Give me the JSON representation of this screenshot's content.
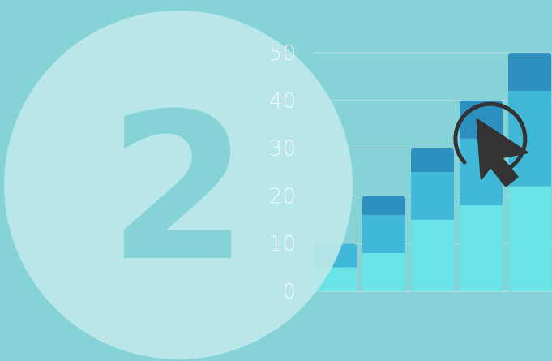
{
  "badge": {
    "number": "2"
  },
  "chart_data": {
    "type": "bar",
    "stacked": true,
    "categories": [
      "",
      "",
      "",
      "",
      ""
    ],
    "series": [
      {
        "values": [
          5,
          8,
          15,
          18,
          22
        ]
      },
      {
        "values": [
          5,
          8,
          10,
          14,
          20
        ]
      },
      {
        "values": [
          0,
          4,
          5,
          8,
          8
        ]
      }
    ],
    "yticks": [
      "0",
      "10",
      "20",
      "30",
      "40",
      "50"
    ],
    "ylim": [
      0,
      50
    ],
    "grid": true,
    "colors": {
      "background": "#85d2d7",
      "circle": "#c0e8eb",
      "series": [
        "#6ae3e6",
        "#41b8d8",
        "#2d8fc0"
      ],
      "grid": "#b4e2e6",
      "cursor": "#333333"
    }
  },
  "cursor": {
    "icon": "mouse-pointer-icon"
  }
}
